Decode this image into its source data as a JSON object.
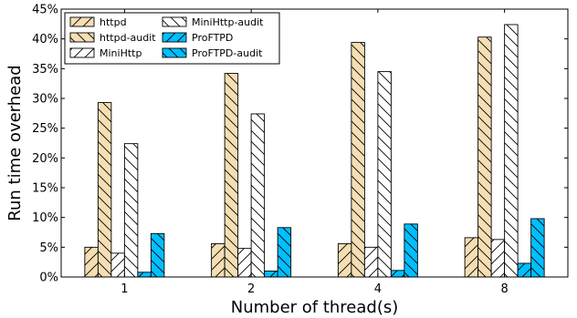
{
  "chart_data": {
    "type": "bar",
    "categories": [
      "1",
      "2",
      "4",
      "8"
    ],
    "xlabel": "Number of thread(s)",
    "ylabel": "Run time overhead",
    "ylim": [
      0,
      45
    ],
    "yticks": [
      "0%",
      "5%",
      "10%",
      "15%",
      "20%",
      "25%",
      "30%",
      "35%",
      "40%",
      "45%"
    ],
    "grid": false,
    "legend": "top-left",
    "series": [
      {
        "name": "httpd",
        "values": [
          5.0,
          5.6,
          5.6,
          6.6
        ],
        "color": "#f5deb3",
        "hatch": "forward"
      },
      {
        "name": "httpd-audit",
        "values": [
          29.3,
          34.2,
          39.4,
          40.3
        ],
        "color": "#f5deb3",
        "hatch": "back"
      },
      {
        "name": "MiniHttp",
        "values": [
          4.0,
          4.8,
          5.0,
          6.3
        ],
        "color": "#ffffff",
        "hatch": "forward"
      },
      {
        "name": "MiniHttp-audit",
        "values": [
          22.4,
          27.4,
          34.5,
          42.4
        ],
        "color": "#ffffff",
        "hatch": "back"
      },
      {
        "name": "ProFTPD",
        "values": [
          0.8,
          1.0,
          1.1,
          2.3
        ],
        "color": "#00bfff",
        "hatch": "forward"
      },
      {
        "name": "ProFTPD-audit",
        "values": [
          7.3,
          8.3,
          8.9,
          9.8
        ],
        "color": "#00bfff",
        "hatch": "back"
      }
    ]
  }
}
